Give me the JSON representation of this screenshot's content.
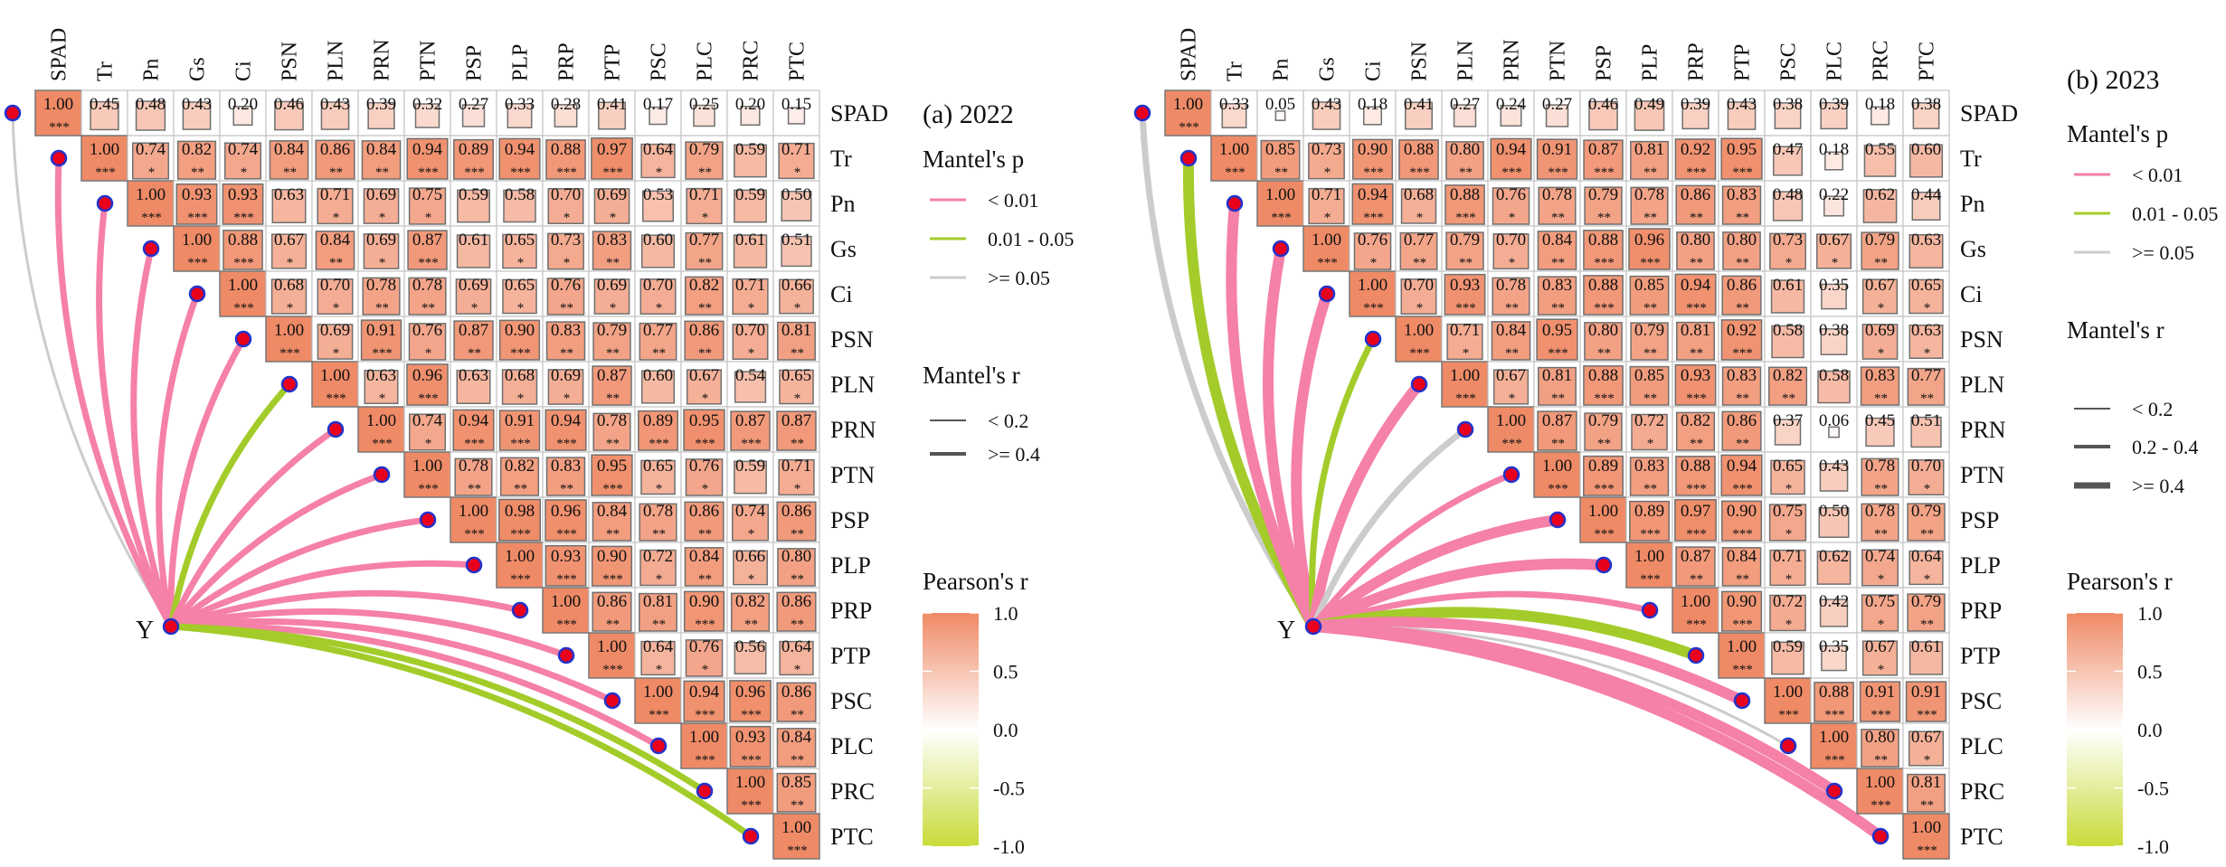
{
  "colors": {
    "pearson_high": "#EF8A66",
    "pearson_mid": "#FFFFFF",
    "pearson_low": "#C9DB3A",
    "p_lt_001": "#F580A8",
    "p_001_005": "#A3CC2A",
    "p_ge_005": "#CCCCCC",
    "node_fill": "#E8001C",
    "node_stroke": "#2233CC"
  },
  "legend": {
    "mantel_p_title": "Mantel's p",
    "p_labels": [
      "< 0.01",
      "0.01 - 0.05",
      ">= 0.05"
    ],
    "mantel_r_title": "Mantel's r",
    "pearson_title": "Pearson's r",
    "pearson_ticks": [
      "1.0",
      "0.5",
      "0.0",
      "-0.5",
      "-1.0"
    ]
  },
  "chart_data": [
    {
      "type": "heatmap",
      "title": "(a) 2022",
      "hub_label": "Y",
      "variables": [
        "SPAD",
        "Tr",
        "Pn",
        "Gs",
        "Ci",
        "PSN",
        "PLN",
        "PRN",
        "PTN",
        "PSP",
        "PLP",
        "PRP",
        "PTP",
        "PSC",
        "PLC",
        "PRC",
        "PTC"
      ],
      "r_legend": [
        "< 0.2",
        ">= 0.4"
      ],
      "values": [
        [
          "1.00",
          "0.45",
          "0.48",
          "0.43",
          "0.20",
          "0.46",
          "0.43",
          "0.39",
          "0.32",
          "0.27",
          "0.33",
          "0.28",
          "0.41",
          "0.17",
          "0.25",
          "0.20",
          "0.15"
        ],
        [
          "1.00",
          "0.74",
          "0.82",
          "0.74",
          "0.84",
          "0.86",
          "0.84",
          "0.94",
          "0.89",
          "0.94",
          "0.88",
          "0.97",
          "0.64",
          "0.79",
          "0.59",
          "0.71"
        ],
        [
          "1.00",
          "0.93",
          "0.93",
          "0.63",
          "0.71",
          "0.69",
          "0.75",
          "0.59",
          "0.58",
          "0.70",
          "0.69",
          "0.53",
          "0.71",
          "0.59",
          "0.50"
        ],
        [
          "1.00",
          "0.88",
          "0.67",
          "0.84",
          "0.69",
          "0.87",
          "0.61",
          "0.65",
          "0.73",
          "0.83",
          "0.60",
          "0.77",
          "0.61",
          "0.51"
        ],
        [
          "1.00",
          "0.68",
          "0.70",
          "0.78",
          "0.78",
          "0.69",
          "0.65",
          "0.76",
          "0.69",
          "0.70",
          "0.82",
          "0.71",
          "0.66"
        ],
        [
          "1.00",
          "0.69",
          "0.91",
          "0.76",
          "0.87",
          "0.90",
          "0.83",
          "0.79",
          "0.77",
          "0.86",
          "0.70",
          "0.81"
        ],
        [
          "1.00",
          "0.63",
          "0.96",
          "0.63",
          "0.68",
          "0.69",
          "0.87",
          "0.60",
          "0.67",
          "0.54",
          "0.65"
        ],
        [
          "1.00",
          "0.74",
          "0.94",
          "0.91",
          "0.94",
          "0.78",
          "0.89",
          "0.95",
          "0.87",
          "0.87"
        ],
        [
          "1.00",
          "0.78",
          "0.82",
          "0.83",
          "0.95",
          "0.65",
          "0.76",
          "0.59",
          "0.71"
        ],
        [
          "1.00",
          "0.98",
          "0.96",
          "0.84",
          "0.78",
          "0.86",
          "0.74",
          "0.86"
        ],
        [
          "1.00",
          "0.93",
          "0.90",
          "0.72",
          "0.84",
          "0.66",
          "0.80"
        ],
        [
          "1.00",
          "0.86",
          "0.81",
          "0.90",
          "0.82",
          "0.86"
        ],
        [
          "1.00",
          "0.64",
          "0.76",
          "0.56",
          "0.64"
        ],
        [
          "1.00",
          "0.94",
          "0.96",
          "0.86"
        ],
        [
          "1.00",
          "0.93",
          "0.84"
        ],
        [
          "1.00",
          "0.85"
        ],
        [
          "1.00"
        ]
      ],
      "signif": [
        [
          "***",
          "",
          "",
          "",
          "",
          "",
          "",
          "",
          "",
          "",
          "",
          "",
          "",
          "",
          "",
          "",
          ""
        ],
        [
          "***",
          "*",
          "**",
          "*",
          "**",
          "**",
          "**",
          "***",
          "***",
          "***",
          "***",
          "***",
          "*",
          "**",
          "",
          "*"
        ],
        [
          "***",
          "***",
          "***",
          "",
          "*",
          "*",
          "*",
          "",
          "",
          "*",
          "*",
          "",
          "*",
          "",
          ""
        ],
        [
          "***",
          "***",
          "*",
          "**",
          "*",
          "***",
          "",
          "*",
          "*",
          "**",
          "",
          "**",
          "",
          ""
        ],
        [
          "***",
          "*",
          "*",
          "**",
          "**",
          "*",
          "*",
          "**",
          "*",
          "*",
          "**",
          "*",
          "*"
        ],
        [
          "***",
          "*",
          "***",
          "*",
          "**",
          "***",
          "**",
          "**",
          "**",
          "**",
          "*",
          "**"
        ],
        [
          "***",
          "*",
          "***",
          "",
          "*",
          "*",
          "**",
          "",
          "*",
          "",
          "*"
        ],
        [
          "***",
          "*",
          "***",
          "***",
          "***",
          "**",
          "***",
          "***",
          "***",
          "**"
        ],
        [
          "***",
          "**",
          "**",
          "**",
          "***",
          "*",
          "*",
          "",
          "*"
        ],
        [
          "***",
          "***",
          "***",
          "**",
          "**",
          "**",
          "*",
          "**"
        ],
        [
          "***",
          "***",
          "***",
          "*",
          "**",
          "*",
          "**"
        ],
        [
          "***",
          "**",
          "**",
          "***",
          "**",
          "**"
        ],
        [
          "***",
          "*",
          "*",
          "",
          "*"
        ],
        [
          "***",
          "***",
          "***",
          "**"
        ],
        [
          "***",
          "***",
          "**"
        ],
        [
          "***",
          "**"
        ],
        [
          "***"
        ]
      ],
      "mantel": [
        {
          "target": "SPAD",
          "p": ">= 0.05",
          "r": "< 0.2"
        },
        {
          "target": "Tr",
          "p": "< 0.01",
          "r": ">= 0.4"
        },
        {
          "target": "Pn",
          "p": "< 0.01",
          "r": ">= 0.4"
        },
        {
          "target": "Gs",
          "p": "< 0.01",
          "r": ">= 0.4"
        },
        {
          "target": "Ci",
          "p": "< 0.01",
          "r": ">= 0.4"
        },
        {
          "target": "PSN",
          "p": "< 0.01",
          "r": ">= 0.4"
        },
        {
          "target": "PLN",
          "p": "0.01 - 0.05",
          "r": ">= 0.4"
        },
        {
          "target": "PRN",
          "p": "< 0.01",
          "r": ">= 0.4"
        },
        {
          "target": "PTN",
          "p": "< 0.01",
          "r": ">= 0.4"
        },
        {
          "target": "PSP",
          "p": "< 0.01",
          "r": ">= 0.4"
        },
        {
          "target": "PLP",
          "p": "< 0.01",
          "r": ">= 0.4"
        },
        {
          "target": "PRP",
          "p": "< 0.01",
          "r": ">= 0.4"
        },
        {
          "target": "PTP",
          "p": "< 0.01",
          "r": ">= 0.4"
        },
        {
          "target": "PSC",
          "p": "< 0.01",
          "r": ">= 0.4"
        },
        {
          "target": "PLC",
          "p": "< 0.01",
          "r": ">= 0.4"
        },
        {
          "target": "PRC",
          "p": "0.01 - 0.05",
          "r": ">= 0.4"
        },
        {
          "target": "PTC",
          "p": "0.01 - 0.05",
          "r": ">= 0.4"
        }
      ]
    },
    {
      "type": "heatmap",
      "title": "(b) 2023",
      "hub_label": "Y",
      "variables": [
        "SPAD",
        "Tr",
        "Pn",
        "Gs",
        "Ci",
        "PSN",
        "PLN",
        "PRN",
        "PTN",
        "PSP",
        "PLP",
        "PRP",
        "PTP",
        "PSC",
        "PLC",
        "PRC",
        "PTC"
      ],
      "r_legend": [
        "< 0.2",
        "0.2 - 0.4",
        ">= 0.4"
      ],
      "values": [
        [
          "1.00",
          "0.33",
          "0.05",
          "0.43",
          "0.18",
          "0.41",
          "0.27",
          "0.24",
          "0.27",
          "0.46",
          "0.49",
          "0.39",
          "0.43",
          "0.38",
          "0.39",
          "0.18",
          "0.38"
        ],
        [
          "1.00",
          "0.85",
          "0.73",
          "0.90",
          "0.88",
          "0.80",
          "0.94",
          "0.91",
          "0.87",
          "0.81",
          "0.92",
          "0.95",
          "0.47",
          "0.18",
          "0.55",
          "0.60"
        ],
        [
          "1.00",
          "0.71",
          "0.94",
          "0.68",
          "0.88",
          "0.76",
          "0.78",
          "0.79",
          "0.78",
          "0.86",
          "0.83",
          "0.48",
          "0.22",
          "0.62",
          "0.44"
        ],
        [
          "1.00",
          "0.76",
          "0.77",
          "0.79",
          "0.70",
          "0.84",
          "0.88",
          "0.96",
          "0.80",
          "0.80",
          "0.73",
          "0.67",
          "0.79",
          "0.63"
        ],
        [
          "1.00",
          "0.70",
          "0.93",
          "0.78",
          "0.83",
          "0.88",
          "0.85",
          "0.94",
          "0.86",
          "0.61",
          "0.35",
          "0.67",
          "0.65"
        ],
        [
          "1.00",
          "0.71",
          "0.84",
          "0.95",
          "0.80",
          "0.79",
          "0.81",
          "0.92",
          "0.58",
          "0.38",
          "0.69",
          "0.63"
        ],
        [
          "1.00",
          "0.67",
          "0.81",
          "0.88",
          "0.85",
          "0.93",
          "0.83",
          "0.82",
          "0.58",
          "0.83",
          "0.77"
        ],
        [
          "1.00",
          "0.87",
          "0.79",
          "0.72",
          "0.82",
          "0.86",
          "0.37",
          "0.06",
          "0.45",
          "0.51"
        ],
        [
          "1.00",
          "0.89",
          "0.83",
          "0.88",
          "0.94",
          "0.65",
          "0.43",
          "0.78",
          "0.70"
        ],
        [
          "1.00",
          "0.89",
          "0.97",
          "0.90",
          "0.75",
          "0.50",
          "0.78",
          "0.79"
        ],
        [
          "1.00",
          "0.87",
          "0.84",
          "0.71",
          "0.62",
          "0.74",
          "0.64"
        ],
        [
          "1.00",
          "0.90",
          "0.72",
          "0.42",
          "0.75",
          "0.79"
        ],
        [
          "1.00",
          "0.59",
          "0.35",
          "0.67",
          "0.61"
        ],
        [
          "1.00",
          "0.88",
          "0.91",
          "0.91"
        ],
        [
          "1.00",
          "0.80",
          "0.67"
        ],
        [
          "1.00",
          "0.81"
        ],
        [
          "1.00"
        ]
      ],
      "signif": [
        [
          "***",
          "",
          "",
          "",
          "",
          "",
          "",
          "",
          "",
          "",
          "",
          "",
          "",
          "",
          "",
          "",
          ""
        ],
        [
          "***",
          "**",
          "*",
          "***",
          "***",
          "**",
          "***",
          "***",
          "***",
          "**",
          "***",
          "***",
          "",
          "",
          "",
          ""
        ],
        [
          "***",
          "*",
          "***",
          "*",
          "***",
          "*",
          "**",
          "**",
          "**",
          "**",
          "**",
          "",
          "",
          "",
          ""
        ],
        [
          "***",
          "*",
          "**",
          "**",
          "*",
          "**",
          "***",
          "***",
          "**",
          "**",
          "*",
          "*",
          "**",
          ""
        ],
        [
          "***",
          "*",
          "***",
          "**",
          "**",
          "***",
          "**",
          "***",
          "**",
          "",
          "",
          "*",
          "*"
        ],
        [
          "***",
          "*",
          "**",
          "***",
          "**",
          "**",
          "**",
          "***",
          "",
          "",
          "*",
          "*"
        ],
        [
          "***",
          "*",
          "**",
          "***",
          "**",
          "***",
          "**",
          "**",
          "",
          "**",
          "**"
        ],
        [
          "***",
          "**",
          "**",
          "*",
          "**",
          "**",
          "",
          "",
          "",
          ""
        ],
        [
          "***",
          "***",
          "**",
          "***",
          "***",
          "*",
          "",
          "**",
          "*"
        ],
        [
          "***",
          "***",
          "***",
          "***",
          "*",
          "",
          "**",
          "**"
        ],
        [
          "***",
          "**",
          "**",
          "*",
          "",
          "*",
          "*"
        ],
        [
          "***",
          "***",
          "*",
          "",
          "*",
          "**"
        ],
        [
          "***",
          "",
          "",
          "*",
          ""
        ],
        [
          "***",
          "***",
          "***",
          "***"
        ],
        [
          "***",
          "**",
          "*"
        ],
        [
          "***",
          "**"
        ],
        [
          "***"
        ]
      ],
      "mantel": [
        {
          "target": "SPAD",
          "p": ">= 0.05",
          "r": "0.2 - 0.4"
        },
        {
          "target": "Tr",
          "p": "0.01 - 0.05",
          "r": ">= 0.4"
        },
        {
          "target": "Pn",
          "p": "< 0.01",
          "r": ">= 0.4"
        },
        {
          "target": "Gs",
          "p": "< 0.01",
          "r": ">= 0.4"
        },
        {
          "target": "Ci",
          "p": "< 0.01",
          "r": ">= 0.4"
        },
        {
          "target": "PSN",
          "p": "0.01 - 0.05",
          "r": "0.2 - 0.4"
        },
        {
          "target": "PLN",
          "p": "< 0.01",
          "r": ">= 0.4"
        },
        {
          "target": "PRN",
          "p": ">= 0.05",
          "r": "0.2 - 0.4"
        },
        {
          "target": "PTN",
          "p": "< 0.01",
          "r": "0.2 - 0.4"
        },
        {
          "target": "PSP",
          "p": "< 0.01",
          "r": ">= 0.4"
        },
        {
          "target": "PLP",
          "p": "< 0.01",
          "r": ">= 0.4"
        },
        {
          "target": "PRP",
          "p": "< 0.01",
          "r": "0.2 - 0.4"
        },
        {
          "target": "PTP",
          "p": "0.01 - 0.05",
          "r": ">= 0.4"
        },
        {
          "target": "PSC",
          "p": "< 0.01",
          "r": ">= 0.4"
        },
        {
          "target": "PLC",
          "p": ">= 0.05",
          "r": "< 0.2"
        },
        {
          "target": "PRC",
          "p": "< 0.01",
          "r": ">= 0.4"
        },
        {
          "target": "PTC",
          "p": "< 0.01",
          "r": ">= 0.4"
        }
      ]
    }
  ]
}
